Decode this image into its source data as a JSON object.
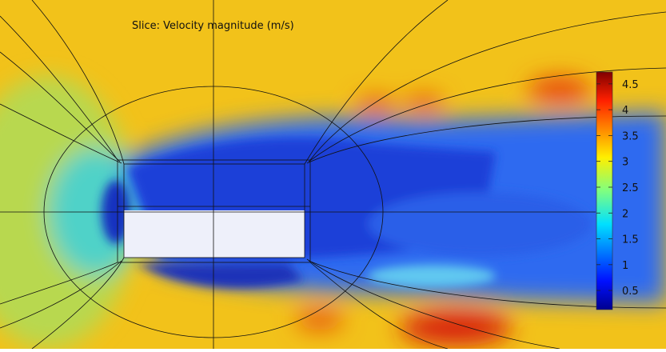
{
  "plot": {
    "title": "Slice: Velocity magnitude (m/s)",
    "colorbar": {
      "range": [
        0.13,
        4.73
      ],
      "ticks": [
        0.5,
        1,
        1.5,
        2,
        2.5,
        3,
        3.5,
        4,
        4.5
      ]
    }
  }
}
